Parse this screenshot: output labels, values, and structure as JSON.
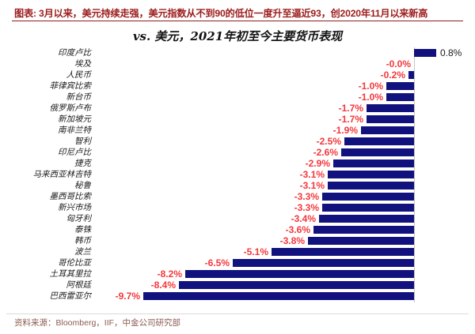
{
  "header": {
    "title": "图表: 3月以来，美元持续走强，美元指数从不到90的低位一度升至逼近93，创2020年11月以来新高"
  },
  "chart_data": {
    "type": "bar",
    "orientation": "horizontal",
    "title": "vs. 美元，2021年初至今主要货币表现",
    "categories": [
      "印度卢比",
      "埃及",
      "人民币",
      "菲律宾比索",
      "新台币",
      "俄罗斯卢布",
      "新加坡元",
      "南非兰特",
      "智利",
      "印尼卢比",
      "捷克",
      "马来西亚林吉特",
      "秘鲁",
      "墨西哥比索",
      "新兴市场",
      "匈牙利",
      "泰铢",
      "韩币",
      "波兰",
      "哥伦比亚",
      "土耳其里拉",
      "阿根廷",
      "巴西雷亚尔"
    ],
    "values": [
      0.8,
      -0.0,
      -0.2,
      -1.0,
      -1.0,
      -1.7,
      -1.7,
      -1.9,
      -2.5,
      -2.6,
      -2.9,
      -3.1,
      -3.1,
      -3.3,
      -3.3,
      -3.4,
      -3.6,
      -3.8,
      -5.1,
      -6.5,
      -8.2,
      -8.4,
      -9.7
    ],
    "value_labels": [
      "0.8%",
      "-0.0%",
      "-0.2%",
      "-1.0%",
      "-1.0%",
      "-1.7%",
      "-1.7%",
      "-1.9%",
      "-2.5%",
      "-2.6%",
      "-2.9%",
      "-3.1%",
      "-3.1%",
      "-3.3%",
      "-3.3%",
      "-3.4%",
      "-3.6%",
      "-3.8%",
      "-5.1%",
      "-6.5%",
      "-8.2%",
      "-8.4%",
      "-9.7%"
    ],
    "xlim": [
      -10.5,
      1.5
    ],
    "grid": false,
    "legend": "none",
    "unit": "%",
    "bar_color": "#12127E",
    "negative_label_color": "#F4373C",
    "positive_label_color": "#1A1A1A",
    "axis_color": "#C5C5C5"
  },
  "footer": {
    "source": "资料来源：Bloomberg，IIF，中金公司研究部"
  }
}
